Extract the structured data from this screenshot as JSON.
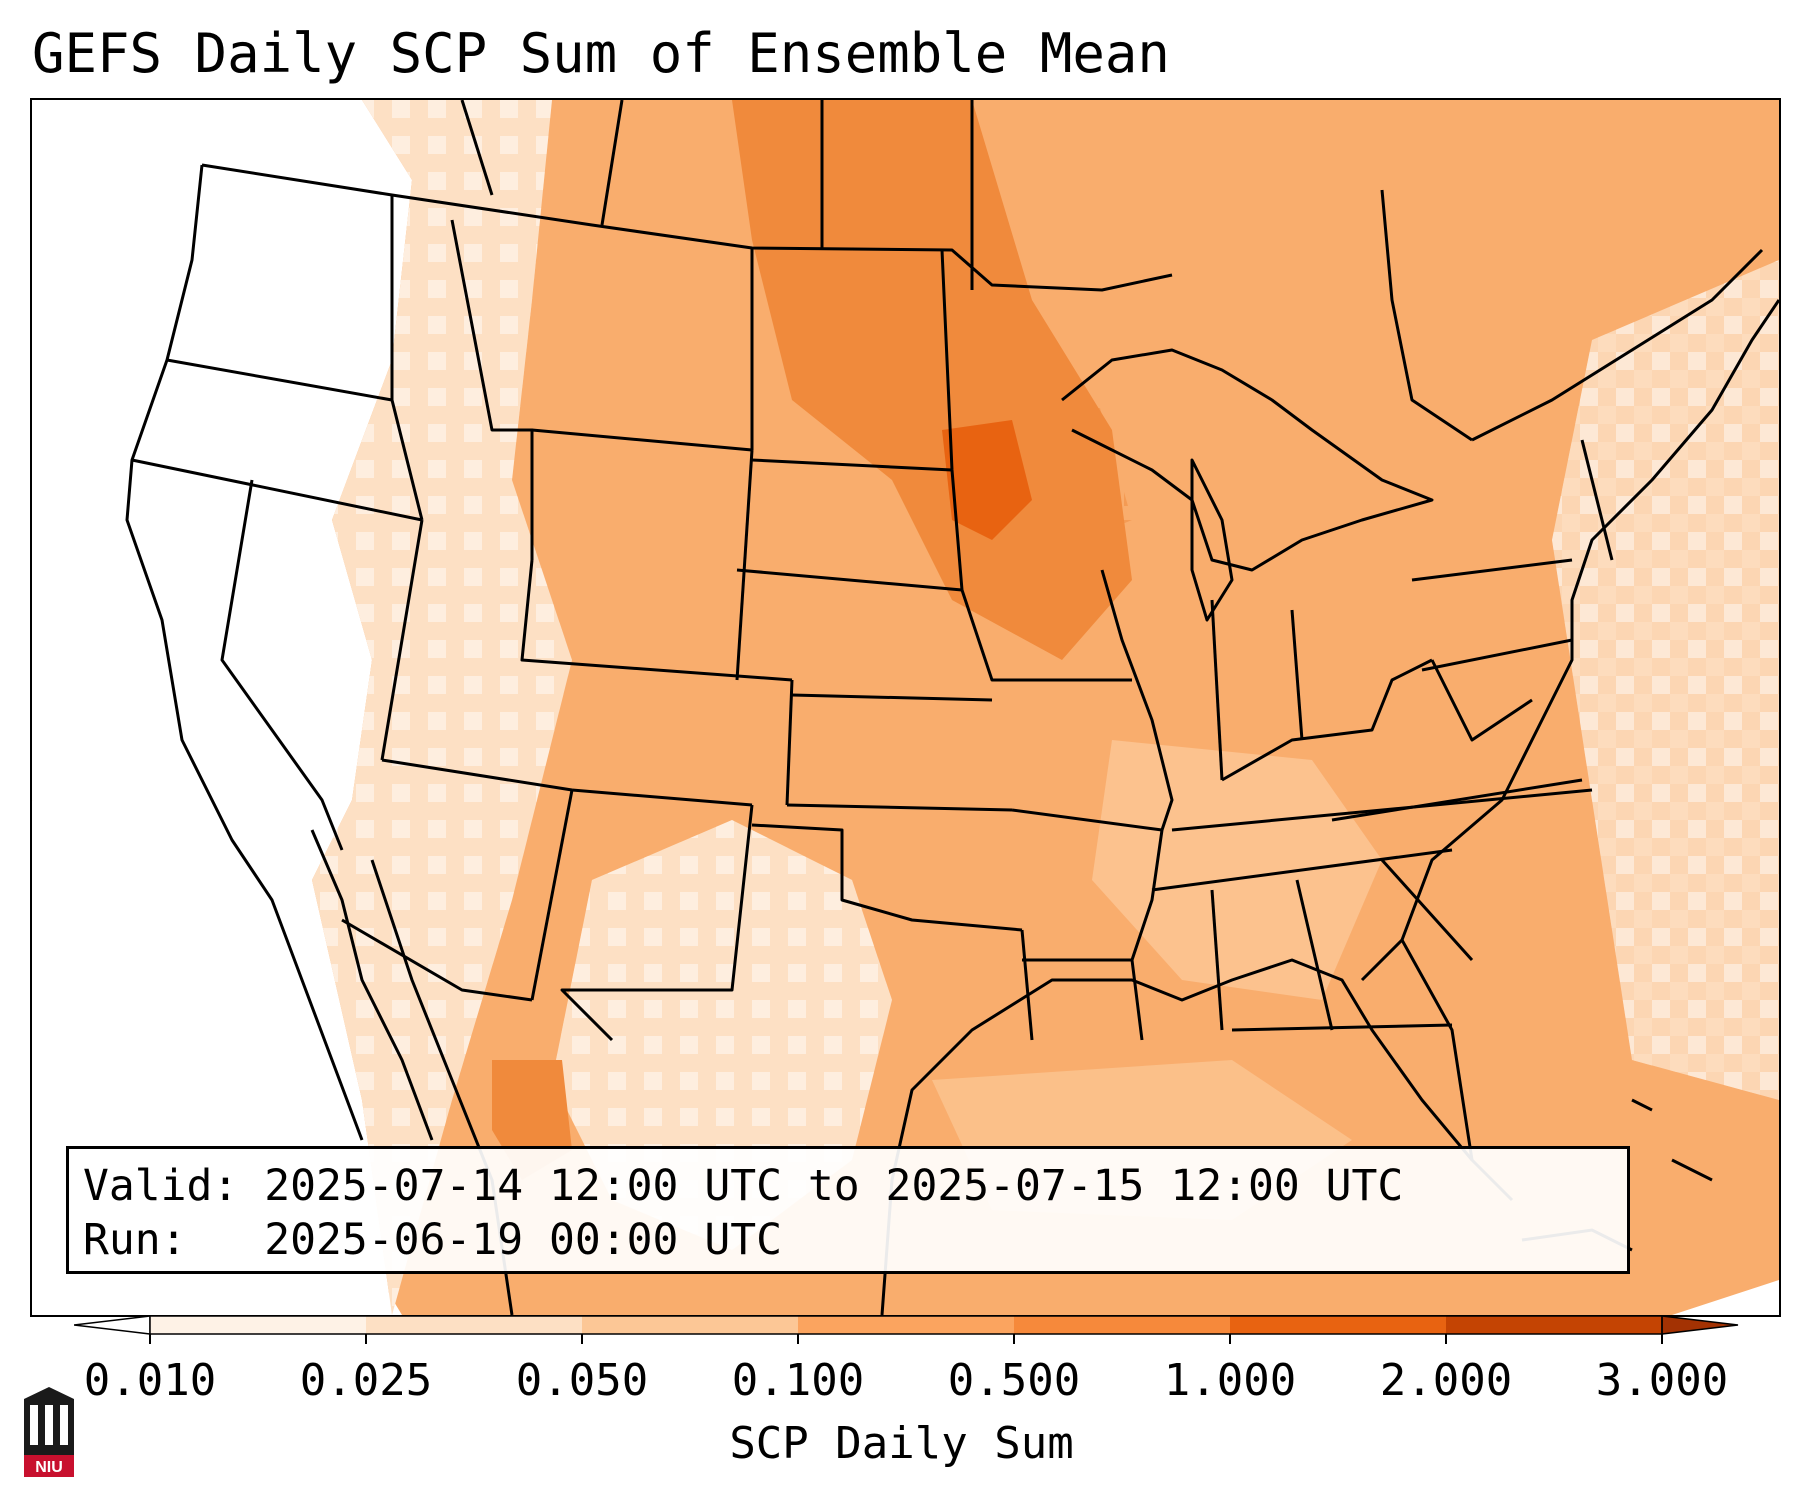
{
  "title": "GEFS Daily SCP Sum of Ensemble Mean",
  "info": {
    "valid_label": "Valid:",
    "valid_value": "2025-07-14 12:00 UTC to 2025-07-15 12:00 UTC",
    "run_label": "Run:",
    "run_value": "2025-06-19 00:00 UTC"
  },
  "colorbar": {
    "label": "SCP Daily Sum",
    "ticks": [
      "0.010",
      "0.025",
      "0.050",
      "0.100",
      "0.500",
      "1.000",
      "2.000",
      "3.000"
    ],
    "colors": [
      "#fef2e6",
      "#fde0c4",
      "#fcc796",
      "#fba45f",
      "#f6893b",
      "#e86311",
      "#c44403"
    ],
    "over_color": "#a33203",
    "under_color": "#ffffff"
  },
  "map": {
    "projection": "Lambert Conformal",
    "coastline_color": "#000000",
    "fill_colors": {
      "low": "#ffffff",
      "mid": "#f9ad6d",
      "high": "#f08a3c",
      "peak": "#e96d1a"
    }
  },
  "logo": {
    "text": "NIU",
    "color": "#c8102e"
  }
}
